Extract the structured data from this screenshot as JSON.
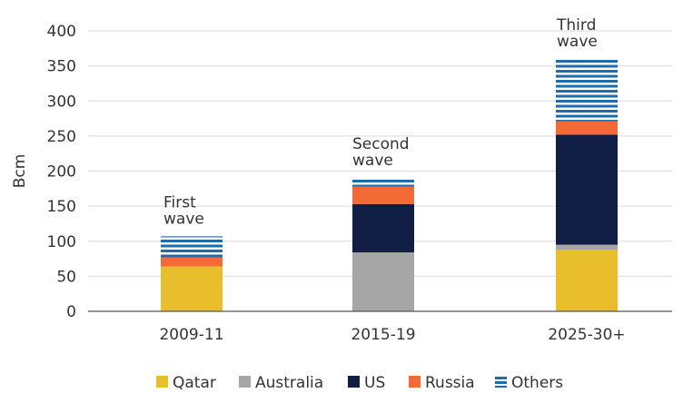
{
  "chart_data": {
    "type": "bar",
    "stacked": true,
    "categories": [
      "2009-11",
      "2015-19",
      "2025-30+"
    ],
    "series": [
      {
        "name": "Qatar",
        "color": "#E8BE2C",
        "pattern": "solid",
        "values": [
          64,
          0,
          88
        ]
      },
      {
        "name": "Australia",
        "color": "#A6A6A6",
        "pattern": "solid",
        "values": [
          0,
          84,
          7
        ]
      },
      {
        "name": "US",
        "color": "#101D45",
        "pattern": "solid",
        "values": [
          0,
          69,
          157
        ]
      },
      {
        "name": "Russia",
        "color": "#F26A36",
        "pattern": "solid",
        "values": [
          13,
          25,
          19
        ]
      },
      {
        "name": "Others",
        "color": "#1F6CAB",
        "pattern": "horizontal-stripes",
        "values": [
          30,
          12,
          89
        ]
      }
    ],
    "ylabel": "Bcm",
    "xlabel": "",
    "ylim": [
      0,
      400
    ],
    "yticks": [
      0,
      50,
      100,
      150,
      200,
      250,
      300,
      350,
      400
    ],
    "grid": true,
    "legend_position": "bottom",
    "annotations": [
      {
        "category": "2009-11",
        "lines": [
          "First",
          "wave"
        ]
      },
      {
        "category": "2015-19",
        "lines": [
          "Second",
          "wave"
        ]
      },
      {
        "category": "2025-30+",
        "lines": [
          "Third",
          "wave"
        ]
      }
    ]
  }
}
